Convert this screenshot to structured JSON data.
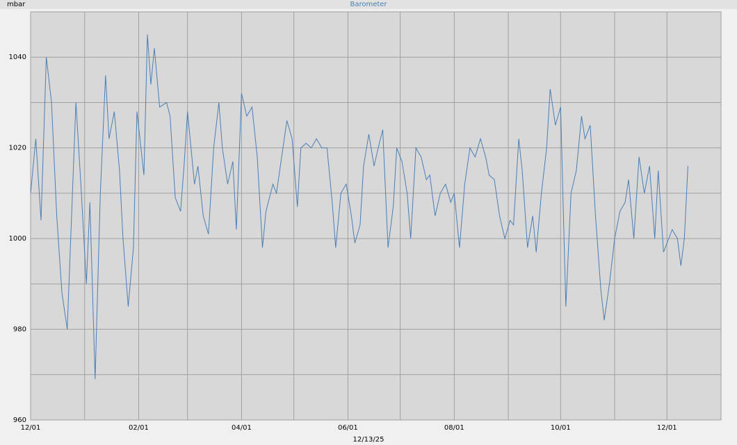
{
  "chart_data": {
    "type": "line",
    "title": "Barometer",
    "y_label": "mbar",
    "x_label": "12/13/25",
    "color": "#4a7fb5",
    "x": [
      0,
      3,
      6,
      9,
      12,
      15,
      18,
      21,
      24,
      26,
      29,
      32,
      34,
      37,
      40,
      43,
      45,
      48,
      51,
      53,
      56,
      59,
      61,
      65,
      67,
      69,
      71,
      74,
      78,
      80,
      83,
      86,
      88,
      90,
      94,
      96,
      99,
      102,
      105,
      108,
      110,
      113,
      116,
      118,
      121,
      124,
      127,
      130,
      133,
      135,
      139,
      141,
      144,
      147,
      150,
      153,
      155,
      158,
      161,
      164,
      167,
      170,
      173,
      175,
      178,
      181,
      184,
      186,
      189,
      191,
      194,
      197,
      200,
      202,
      205,
      208,
      210,
      213,
      216,
      218,
      221,
      224,
      227,
      229,
      232,
      235,
      238,
      241,
      243,
      246,
      249,
      252,
      255,
      258,
      261,
      263,
      266,
      269,
      272,
      275,
      277,
      280,
      282,
      285,
      288,
      290,
      293,
      296,
      298,
      301,
      304,
      307,
      310,
      313,
      316,
      318,
      321,
      324,
      327,
      329,
      332,
      335,
      338,
      341,
      343,
      346,
      349,
      352,
      355,
      358,
      360,
      363,
      368,
      371,
      373,
      375,
      377
    ],
    "values": [
      1010,
      1022,
      1004,
      1040,
      1030,
      1005,
      988,
      980,
      1010,
      1030,
      1011,
      990,
      1008,
      969,
      1010,
      1036,
      1022,
      1028,
      1015,
      1000,
      985,
      998,
      1028,
      1014,
      1045,
      1034,
      1042,
      1029,
      1030,
      1027,
      1009,
      1006,
      1016,
      1028,
      1012,
      1016,
      1005,
      1001,
      1020,
      1030,
      1020,
      1012,
      1017,
      1002,
      1032,
      1027,
      1029,
      1018,
      998,
      1006,
      1012,
      1010,
      1018,
      1026,
      1022,
      1007,
      1020,
      1021,
      1020,
      1022,
      1020,
      1020,
      1008,
      998,
      1010,
      1012,
      1005,
      999,
      1003,
      1016,
      1023,
      1016,
      1021,
      1024,
      998,
      1007,
      1020,
      1017,
      1010,
      1000,
      1020,
      1018,
      1013,
      1014,
      1005,
      1010,
      1012,
      1008,
      1010,
      998,
      1012,
      1020,
      1018,
      1022,
      1018,
      1014,
      1013,
      1005,
      1000,
      1004,
      1003,
      1022,
      1015,
      998,
      1005,
      997,
      1010,
      1020,
      1033,
      1025,
      1029,
      985,
      1010,
      1015,
      1027,
      1022,
      1025,
      1005,
      989,
      982,
      990,
      1000,
      1006,
      1008,
      1013,
      1000,
      1018,
      1010,
      1016,
      1000,
      1015,
      997,
      1002,
      1000,
      994,
      1000,
      1016
    ],
    "xlim": [
      0,
      396
    ],
    "xticks": [
      {
        "value": 0,
        "label": "12/01"
      },
      {
        "value": 62,
        "label": "02/01"
      },
      {
        "value": 121,
        "label": "04/01"
      },
      {
        "value": 182,
        "label": "06/01"
      },
      {
        "value": 243,
        "label": "08/01"
      },
      {
        "value": 304,
        "label": "10/01"
      },
      {
        "value": 365,
        "label": "12/01"
      }
    ],
    "xgrid": [
      31,
      90,
      151,
      212,
      274,
      335
    ],
    "ylim": [
      960,
      1050
    ],
    "yticks": [
      960,
      980,
      1000,
      1020,
      1040
    ],
    "ygrid": [
      970,
      990,
      1010,
      1030
    ],
    "grid": true
  }
}
